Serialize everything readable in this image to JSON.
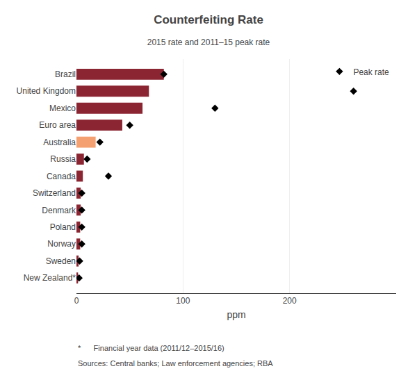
{
  "chart_data": {
    "type": "bar",
    "orientation": "horizontal",
    "title": "Counterfeiting Rate",
    "subtitle": "2015 rate and 2011–15 peak rate",
    "xlabel": "ppm",
    "categories": [
      "Brazil",
      "United Kingdom",
      "Mexico",
      "Euro area",
      "Australia",
      "Russia",
      "Canada",
      "Switzerland",
      "Denmark",
      "Poland",
      "Norway",
      "Sweden",
      "New Zealand*"
    ],
    "series": [
      {
        "type": "bar",
        "values": [
          82,
          68,
          62,
          43,
          18,
          7,
          6,
          4,
          4,
          3.5,
          3.5,
          2.0,
          1.5
        ],
        "colors": [
          "#8B2532",
          "#8B2532",
          "#8B2532",
          "#8B2532",
          "#F4A070",
          "#8B2532",
          "#8B2532",
          "#8B2532",
          "#8B2532",
          "#8B2532",
          "#8B2532",
          "#8B2532",
          "#8B2532"
        ]
      },
      {
        "type": "scatter",
        "name": "Peak rate",
        "marker": "diamond",
        "color": "#000000",
        "values": [
          82,
          260,
          130,
          50,
          22,
          10,
          30,
          5,
          5,
          5,
          5,
          3,
          2.5
        ]
      }
    ],
    "xlim": [
      0,
      300
    ],
    "xticks": [
      0,
      100,
      200
    ],
    "grid": true,
    "legend": "upper right",
    "annotations": [
      "*      Financial year data (2011/12–2015/16)",
      "Sources: Central banks; Law enforcement agencies; RBA"
    ]
  }
}
